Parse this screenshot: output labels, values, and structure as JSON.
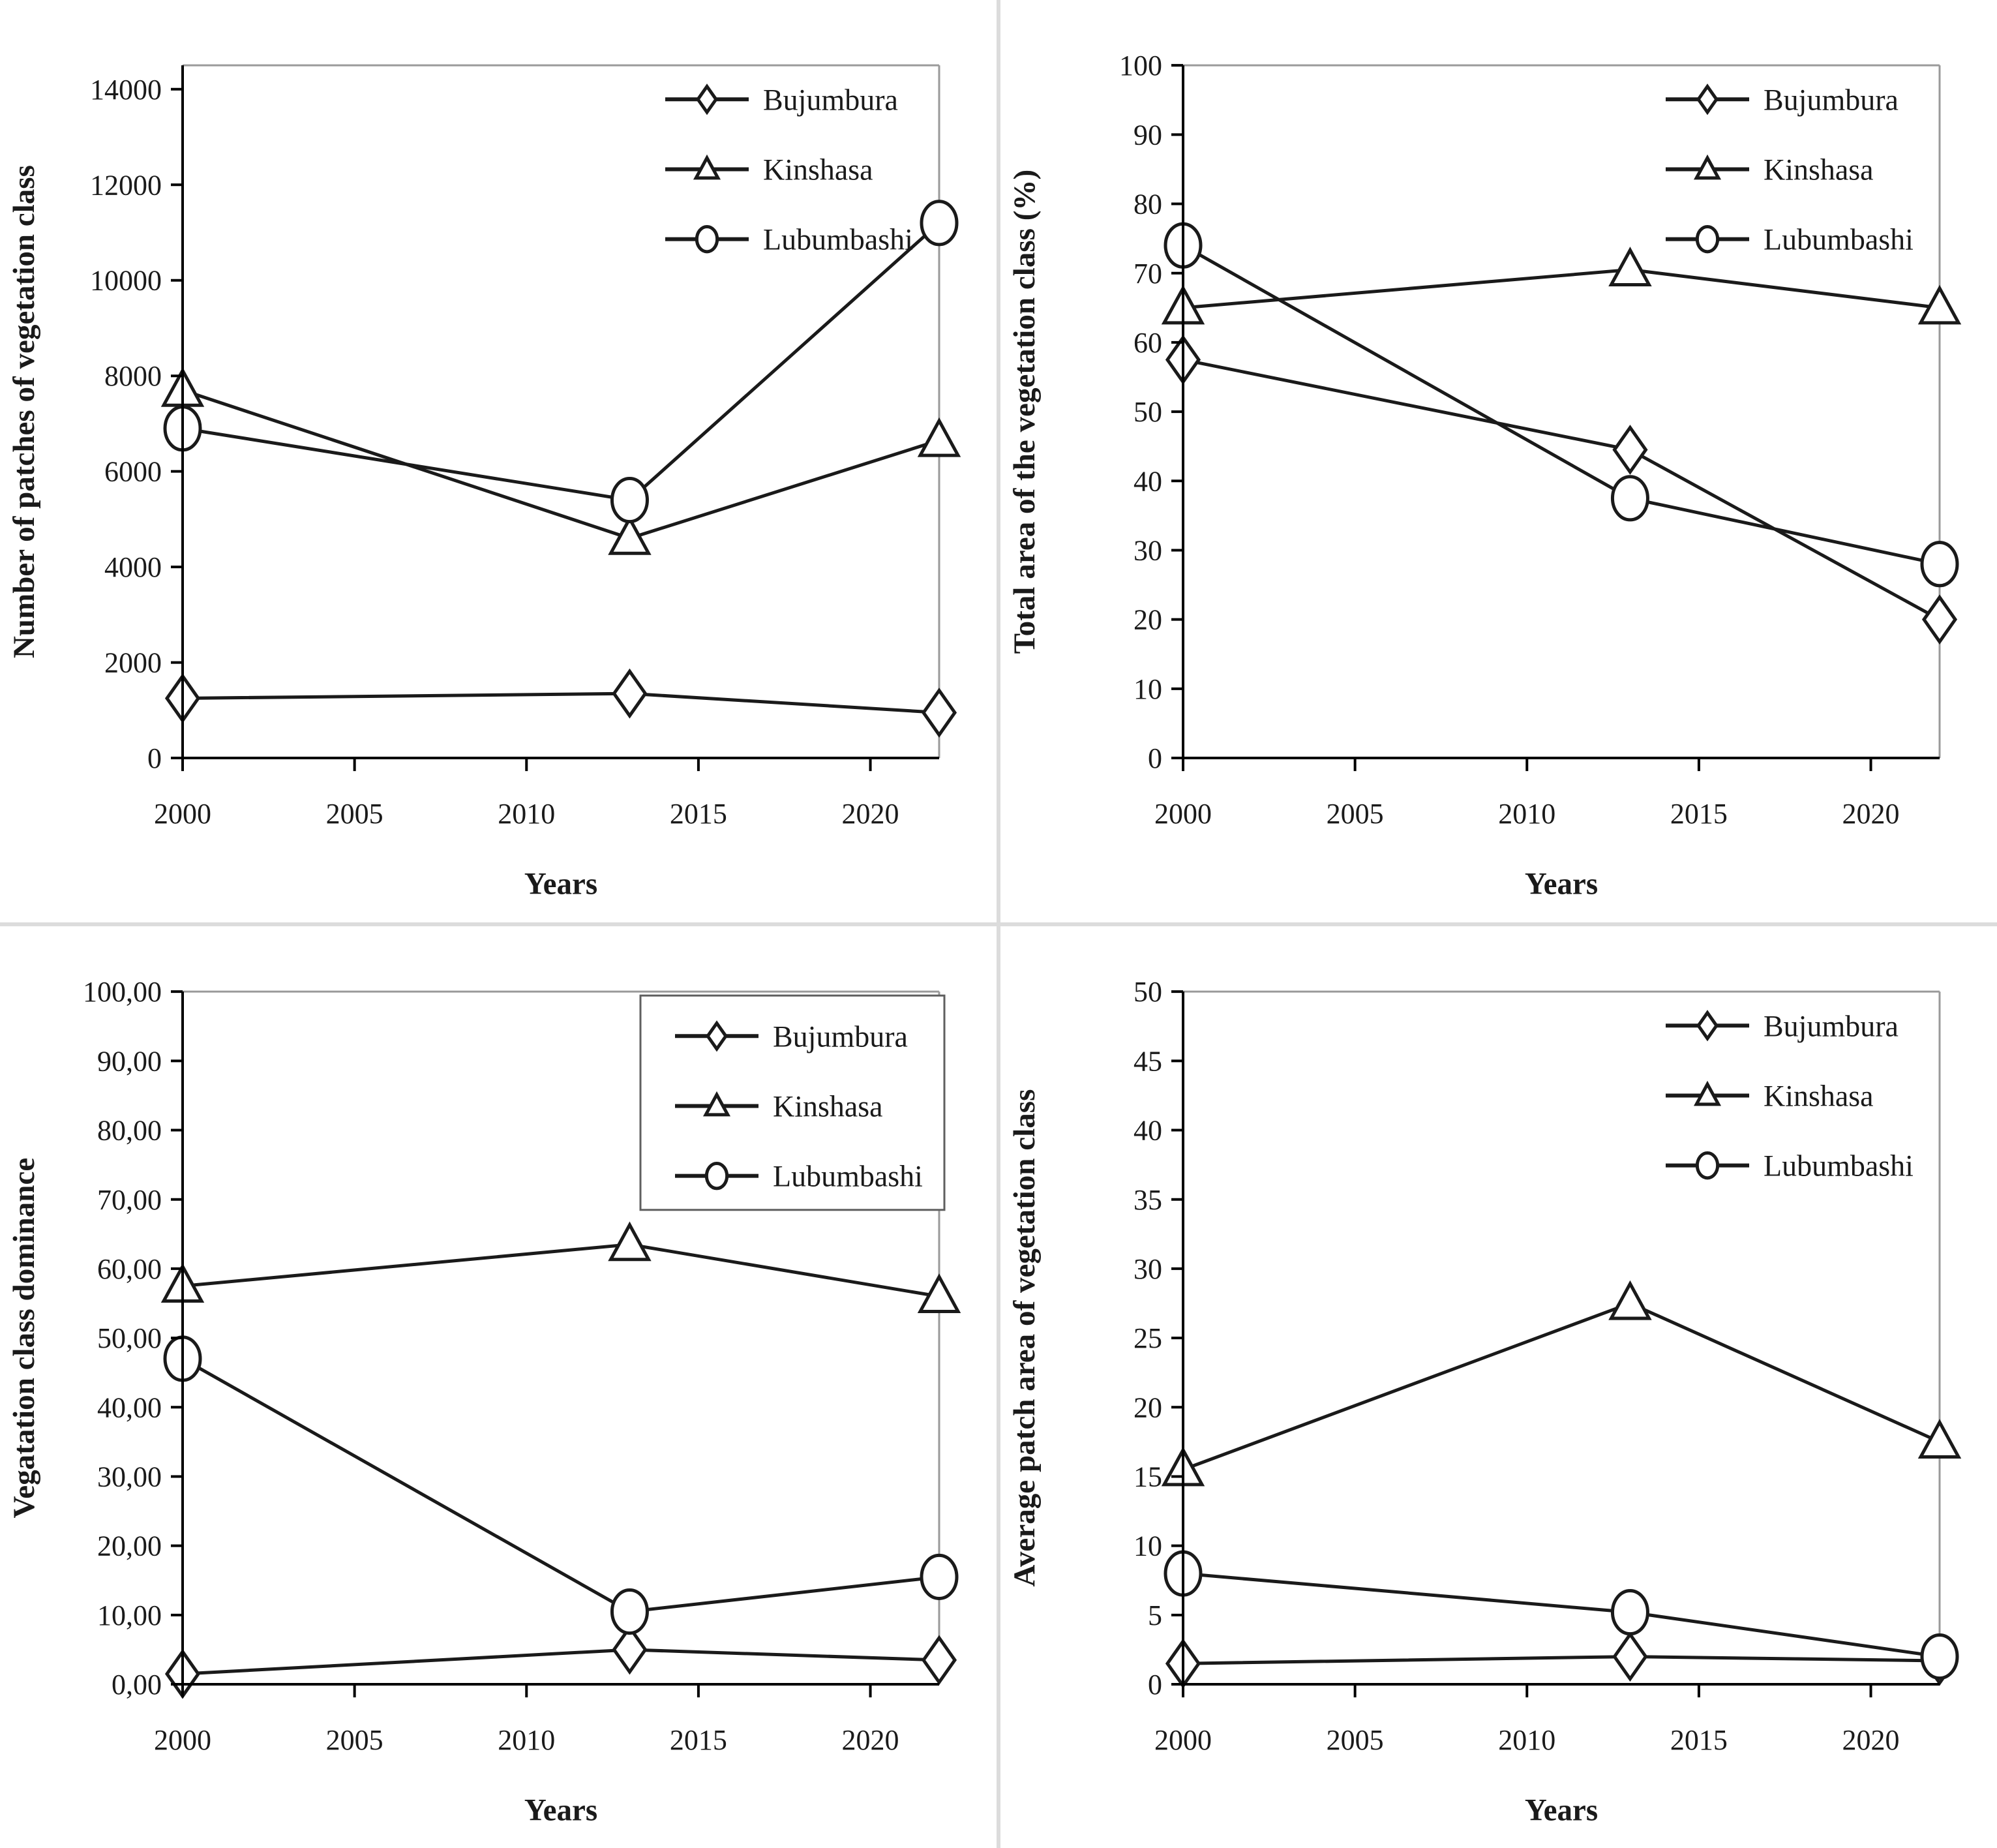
{
  "figure": {
    "description_visible_text_only": true,
    "x_axis_title": "Years",
    "cities": [
      "Bujumbura",
      "Kinshasa",
      "Lubumbashi"
    ]
  },
  "chart_data": [
    {
      "type": "line",
      "title": "",
      "xlabel": "Years",
      "ylabel": "Number of patches of vegetation class",
      "x": [
        2000,
        2013,
        2022
      ],
      "xlim": [
        2000,
        2022
      ],
      "xticks": [
        2000,
        2005,
        2010,
        2015,
        2020
      ],
      "xtick_labels": [
        "2000",
        "2005",
        "2010",
        "2015",
        "2020"
      ],
      "ylim": [
        0,
        14500
      ],
      "yticks": [
        0,
        2000,
        4000,
        6000,
        8000,
        10000,
        12000,
        14000
      ],
      "ytick_labels": [
        "0",
        "2000",
        "4000",
        "6000",
        "8000",
        "10000",
        "12000",
        "14000"
      ],
      "grid": false,
      "legend_position": "top-right-inside",
      "legend_box": false,
      "series": [
        {
          "name": "Bujumbura",
          "marker": "diamond",
          "values": [
            1250,
            1350,
            950
          ]
        },
        {
          "name": "Kinshasa",
          "marker": "triangle",
          "values": [
            7700,
            4600,
            6650
          ]
        },
        {
          "name": "Lubumbashi",
          "marker": "circle",
          "values": [
            6900,
            5400,
            11200
          ]
        }
      ]
    },
    {
      "type": "line",
      "title": "",
      "xlabel": "Years",
      "ylabel": "Total area of the vegetation class (%)",
      "x": [
        2000,
        2013,
        2022
      ],
      "xlim": [
        2000,
        2022
      ],
      "xticks": [
        2000,
        2005,
        2010,
        2015,
        2020
      ],
      "xtick_labels": [
        "2000",
        "2005",
        "2010",
        "2015",
        "2020"
      ],
      "ylim": [
        0,
        100
      ],
      "yticks": [
        0,
        10,
        20,
        30,
        40,
        50,
        60,
        70,
        80,
        90,
        100
      ],
      "ytick_labels": [
        "0",
        "10",
        "20",
        "30",
        "40",
        "50",
        "60",
        "70",
        "80",
        "90",
        "100"
      ],
      "grid": false,
      "legend_position": "top-right-inside",
      "legend_box": false,
      "series": [
        {
          "name": "Bujumbura",
          "marker": "diamond",
          "values": [
            57.5,
            44.5,
            20
          ]
        },
        {
          "name": "Kinshasa",
          "marker": "triangle",
          "values": [
            65,
            70.5,
            65
          ]
        },
        {
          "name": "Lubumbashi",
          "marker": "circle",
          "values": [
            74,
            37.5,
            28
          ]
        }
      ]
    },
    {
      "type": "line",
      "title": "",
      "xlabel": "Years",
      "ylabel": "Vegatation class dominance",
      "x": [
        2000,
        2013,
        2022
      ],
      "xlim": [
        2000,
        2022
      ],
      "xticks": [
        2000,
        2005,
        2010,
        2015,
        2020
      ],
      "xtick_labels": [
        "2000",
        "2005",
        "2010",
        "2015",
        "2020"
      ],
      "ylim": [
        0,
        100
      ],
      "yticks": [
        0,
        10,
        20,
        30,
        40,
        50,
        60,
        70,
        80,
        90,
        100
      ],
      "ytick_labels": [
        "0,00",
        "10,00",
        "20,00",
        "30,00",
        "40,00",
        "50,00",
        "60,00",
        "70,00",
        "80,00",
        "90,00",
        "100,00"
      ],
      "grid": false,
      "legend_position": "top-right-inside",
      "legend_box": true,
      "series": [
        {
          "name": "Bujumbura",
          "marker": "diamond",
          "values": [
            1.5,
            5,
            3.5
          ]
        },
        {
          "name": "Kinshasa",
          "marker": "triangle",
          "values": [
            57.5,
            63.5,
            56
          ]
        },
        {
          "name": "Lubumbashi",
          "marker": "circle",
          "values": [
            47,
            10.5,
            15.5
          ]
        }
      ]
    },
    {
      "type": "line",
      "title": "",
      "xlabel": "Years",
      "ylabel": "Average patch area of vegetation class",
      "x": [
        2000,
        2013,
        2022
      ],
      "xlim": [
        2000,
        2022
      ],
      "xticks": [
        2000,
        2005,
        2010,
        2015,
        2020
      ],
      "xtick_labels": [
        "2000",
        "2005",
        "2010",
        "2015",
        "2020"
      ],
      "ylim": [
        0,
        50
      ],
      "yticks": [
        0,
        5,
        10,
        15,
        20,
        25,
        30,
        35,
        40,
        45,
        50
      ],
      "ytick_labels": [
        "0",
        "5",
        "10",
        "15",
        "20",
        "25",
        "30",
        "35",
        "40",
        "45",
        "50"
      ],
      "grid": false,
      "legend_position": "top-right-inside",
      "legend_box": false,
      "series": [
        {
          "name": "Bujumbura",
          "marker": "diamond",
          "values": [
            1.5,
            2,
            1.7
          ]
        },
        {
          "name": "Kinshasa",
          "marker": "triangle",
          "values": [
            15.5,
            27.5,
            17.5
          ]
        },
        {
          "name": "Lubumbashi",
          "marker": "circle",
          "values": [
            8,
            5.2,
            2
          ]
        }
      ]
    }
  ],
  "colors": {
    "line": "#1a1a1a",
    "axis": "#000000",
    "plot_border": "#9a9a9a",
    "marker_fill": "#ffffff",
    "text": "#1a1a1a",
    "legend_box_border": "#5f5f5f",
    "panel_divider": "#dcdcdc"
  }
}
